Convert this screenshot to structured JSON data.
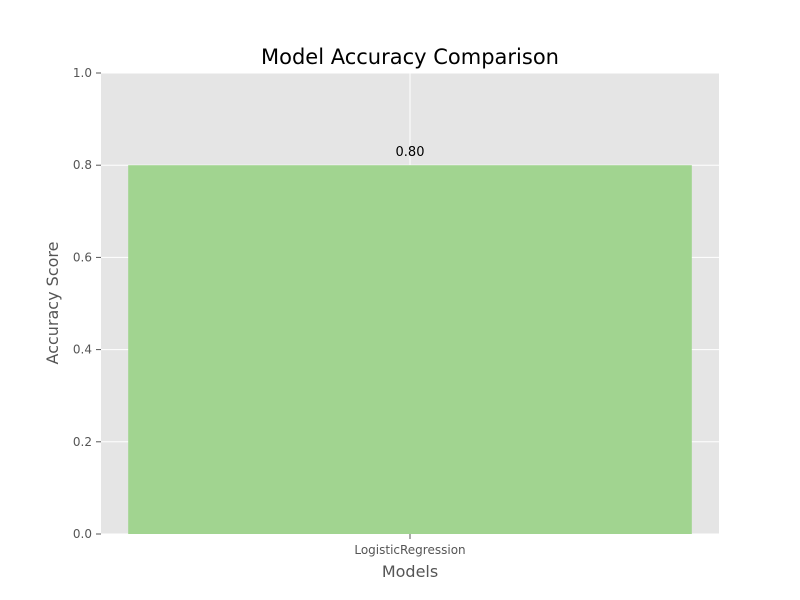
{
  "chart_data": {
    "type": "bar",
    "title": "Model Accuracy Comparison",
    "xlabel": "Models",
    "ylabel": "Accuracy Score",
    "categories": [
      "LogisticRegression"
    ],
    "values": [
      0.8
    ],
    "data_labels": [
      "0.80"
    ],
    "ylim": [
      0,
      1.0
    ],
    "yticks": [
      0.0,
      0.2,
      0.4,
      0.6,
      0.8,
      1.0
    ],
    "ytick_labels": [
      "0.0",
      "0.2",
      "0.4",
      "0.6",
      "0.8",
      "1.0"
    ],
    "grid": true,
    "legend": "none",
    "colors": {
      "bar": "#a1d490",
      "plot_background": "#e5e5e5",
      "grid": "#ffffff",
      "tick_text": "#555555",
      "title_text": "#000000"
    }
  }
}
